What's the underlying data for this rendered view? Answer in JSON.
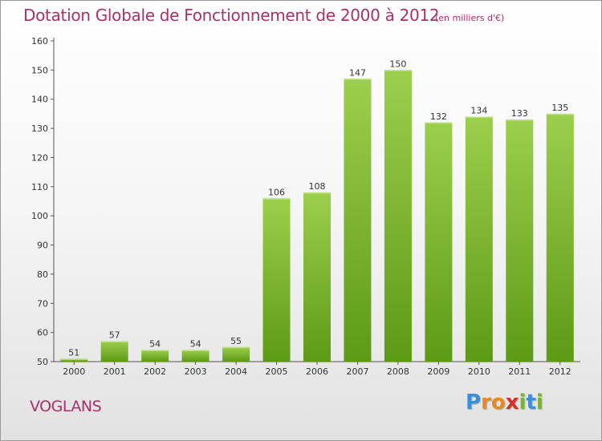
{
  "header": {
    "title": "Dotation Globale de Fonctionnement de 2000 à 2012",
    "unit": "(en milliers d'€)"
  },
  "footer": {
    "commune": "VOGLANS",
    "logo": {
      "letters": [
        "P",
        "r",
        "o",
        "x",
        "i",
        "t",
        "i"
      ],
      "colors": [
        "#3a8fd6",
        "#e98a1f",
        "#e98a1f",
        "#d8302a",
        "#7ab531",
        "#3a8fd6",
        "#7ab531"
      ]
    }
  },
  "chart_data": {
    "type": "bar",
    "title": "Dotation Globale de Fonctionnement de 2000 à 2012",
    "subtitle": "(en milliers d'€)",
    "xlabel": "",
    "ylabel": "",
    "categories": [
      "2000",
      "2001",
      "2002",
      "2003",
      "2004",
      "2005",
      "2006",
      "2007",
      "2008",
      "2009",
      "2010",
      "2011",
      "2012"
    ],
    "values": [
      51,
      57,
      54,
      54,
      55,
      106,
      108,
      147,
      150,
      132,
      134,
      133,
      135
    ],
    "ylim": [
      50,
      160
    ],
    "yticks": [
      50,
      60,
      70,
      80,
      90,
      100,
      110,
      120,
      130,
      140,
      150,
      160
    ],
    "grid": false,
    "legend": "none",
    "colors": {
      "bar_top": "#9ccf4c",
      "bar_bottom": "#5d9a16",
      "axis": "#555555",
      "text": "#a8316a"
    }
  }
}
